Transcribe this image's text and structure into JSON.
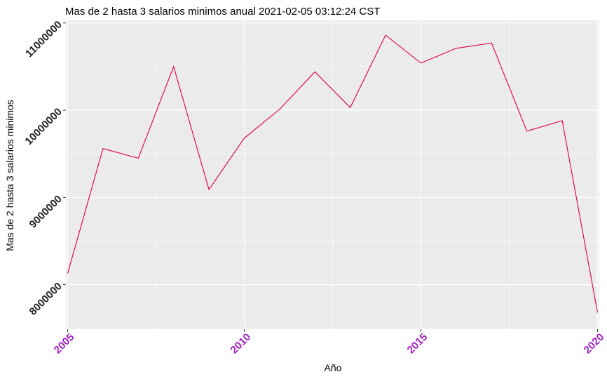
{
  "chart_data": {
    "type": "line",
    "title": "Mas de 2 hasta 3 salarios minimos anual  2021-02-05 03:12:24 CST",
    "xlabel": "Año",
    "ylabel": "Mas de 2 hasta 3 salarios minimos",
    "x": [
      2005,
      2006,
      2007,
      2008,
      2009,
      2010,
      2011,
      2012,
      2013,
      2014,
      2015,
      2016,
      2017,
      2018,
      2019,
      2020
    ],
    "series": [
      {
        "values": [
          8130000,
          9560000,
          9450000,
          10500000,
          9090000,
          9680000,
          10010000,
          10440000,
          10030000,
          10860000,
          10540000,
          10710000,
          10770000,
          9760000,
          9880000,
          7680000
        ],
        "color": "#e0003c"
      }
    ],
    "xlim": [
      2004.95,
      2020.05
    ],
    "ylim": [
      7490000,
      11030000
    ],
    "xticks": [
      2005,
      2010,
      2015,
      2020
    ],
    "xtick_labels": [
      "2005",
      "2010",
      "2015",
      "2020"
    ],
    "yticks": [
      8000000,
      9000000,
      10000000,
      11000000
    ],
    "ytick_labels": [
      "8000000",
      "9000000",
      "10000000",
      "11000000"
    ],
    "grid": true,
    "panel_background": "#ebebeb",
    "grid_color": "#ffffff",
    "xtick_color": "#a020c0"
  }
}
